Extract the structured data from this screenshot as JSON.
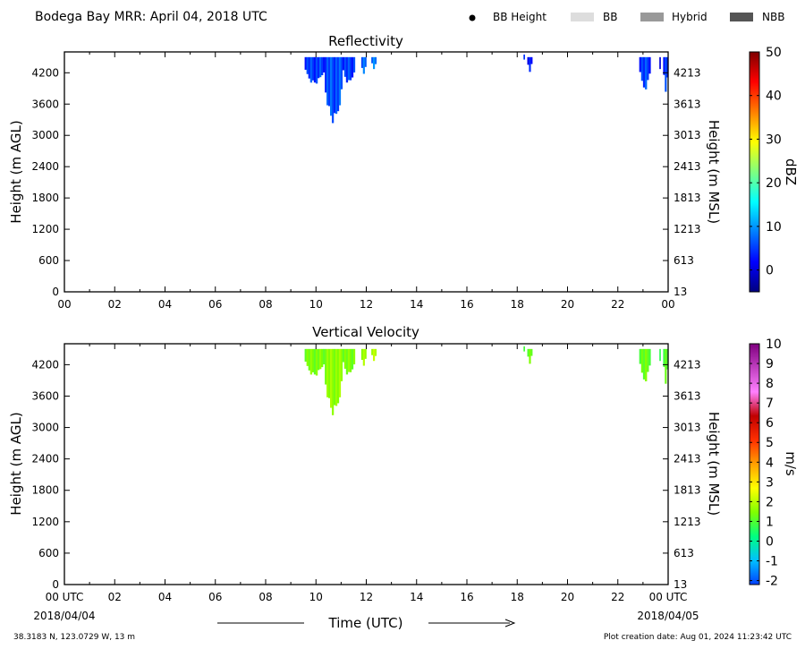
{
  "header": {
    "title": "Bodega Bay MRR:  April 04, 2018 UTC",
    "legend": [
      {
        "label": "BB Height",
        "swatch": "dot",
        "color": "#000000"
      },
      {
        "label": "BB",
        "swatch": "box",
        "color": "#dddddd"
      },
      {
        "label": "Hybrid",
        "swatch": "box",
        "color": "#999999"
      },
      {
        "label": "NBB",
        "swatch": "box",
        "color": "#555555"
      }
    ]
  },
  "footer": {
    "location": "38.3183 N, 123.0729 W, 13 m",
    "creation": "Plot creation date: Aug 01, 2024 11:23:42 UTC",
    "time_label": "Time (UTC)"
  },
  "chart_data": [
    {
      "type": "heatmap",
      "title": "Reflectivity",
      "ylabel": "Height (m AGL)",
      "ylabel_right": "Height (m MSL)",
      "xlim": [
        0,
        24
      ],
      "ylim": [
        0,
        4600
      ],
      "x_ticks": [
        "00",
        "02",
        "04",
        "06",
        "08",
        "10",
        "12",
        "14",
        "16",
        "18",
        "20",
        "22",
        "00"
      ],
      "y_ticks": [
        0,
        600,
        1200,
        1800,
        2400,
        3000,
        3600,
        4200
      ],
      "y_ticks_right": [
        "13",
        "613",
        "1213",
        "1813",
        "2413",
        "3013",
        "3613",
        "4213"
      ],
      "colorbar": {
        "label": "dBZ",
        "min": -5,
        "max": 50,
        "ticks": [
          "0",
          "10",
          "20",
          "30",
          "40",
          "50"
        ],
        "tick_values": [
          0,
          10,
          20,
          30,
          40,
          50
        ],
        "stops": [
          "#00007f",
          "#0000ff",
          "#007fff",
          "#00ffff",
          "#7fff7f",
          "#ffff00",
          "#ff7f00",
          "#ff0000",
          "#7f0000"
        ]
      },
      "echo_columns": [
        {
          "start_hour": 9.55,
          "end_hour": 10.35,
          "top_m": 4500,
          "bottom_m": 3950,
          "value": 5
        },
        {
          "start_hour": 10.35,
          "end_hour": 11.05,
          "top_m": 4500,
          "bottom_m": 3150,
          "value": 6
        },
        {
          "start_hour": 11.05,
          "end_hour": 11.55,
          "top_m": 4500,
          "bottom_m": 3950,
          "value": 5
        },
        {
          "start_hour": 11.8,
          "end_hour": 12.0,
          "top_m": 4500,
          "bottom_m": 4100,
          "value": 8
        },
        {
          "start_hour": 12.2,
          "end_hour": 12.4,
          "top_m": 4500,
          "bottom_m": 4250,
          "value": 9
        },
        {
          "start_hour": 18.25,
          "end_hour": 18.3,
          "top_m": 4550,
          "bottom_m": 4450,
          "value": 7
        },
        {
          "start_hour": 18.4,
          "end_hour": 18.6,
          "top_m": 4500,
          "bottom_m": 4200,
          "value": 3
        },
        {
          "start_hour": 22.85,
          "end_hour": 23.3,
          "top_m": 4500,
          "bottom_m": 3850,
          "value": 5
        },
        {
          "start_hour": 23.65,
          "end_hour": 23.7,
          "top_m": 4500,
          "bottom_m": 4250,
          "value": 2
        },
        {
          "start_hour": 23.8,
          "end_hour": 24.0,
          "top_m": 4500,
          "bottom_m": 3750,
          "value": 5
        }
      ]
    },
    {
      "type": "heatmap",
      "title": "Vertical Velocity",
      "ylabel": "Height (m AGL)",
      "ylabel_right": "Height (m MSL)",
      "xlim": [
        0,
        24
      ],
      "ylim": [
        0,
        4600
      ],
      "x_ticks": [
        "00 UTC",
        "02",
        "04",
        "06",
        "08",
        "10",
        "12",
        "14",
        "16",
        "18",
        "20",
        "22",
        "00 UTC"
      ],
      "x_date_start": "2018/04/04",
      "x_date_end": "2018/04/05",
      "y_ticks": [
        0,
        600,
        1200,
        1800,
        2400,
        3000,
        3600,
        4200
      ],
      "y_ticks_right": [
        "13",
        "613",
        "1213",
        "1813",
        "2413",
        "3013",
        "3613",
        "4213"
      ],
      "colorbar": {
        "label": "m/s",
        "min": -2.2,
        "max": 10,
        "ticks": [
          "-2",
          "-1",
          "0",
          "1",
          "2",
          "3",
          "4",
          "5",
          "6",
          "7",
          "8",
          "9",
          "10"
        ],
        "tick_values": [
          -2,
          -1,
          0,
          1,
          2,
          3,
          4,
          5,
          6,
          7,
          8,
          9,
          10
        ],
        "stops": [
          "#0040ff",
          "#00c0ff",
          "#00ff80",
          "#80ff00",
          "#ffff00",
          "#ffa000",
          "#ff3000",
          "#c00000",
          "#ff80ff",
          "#c040c0",
          "#800080"
        ]
      },
      "echo_columns": [
        {
          "start_hour": 9.55,
          "end_hour": 10.35,
          "top_m": 4500,
          "bottom_m": 3950,
          "value": 1.4
        },
        {
          "start_hour": 10.35,
          "end_hour": 11.05,
          "top_m": 4500,
          "bottom_m": 3150,
          "value": 1.6
        },
        {
          "start_hour": 11.05,
          "end_hour": 11.55,
          "top_m": 4500,
          "bottom_m": 3950,
          "value": 1.4
        },
        {
          "start_hour": 11.8,
          "end_hour": 12.0,
          "top_m": 4500,
          "bottom_m": 4100,
          "value": 1.8
        },
        {
          "start_hour": 12.2,
          "end_hour": 12.4,
          "top_m": 4500,
          "bottom_m": 4250,
          "value": 2.0
        },
        {
          "start_hour": 18.25,
          "end_hour": 18.3,
          "top_m": 4550,
          "bottom_m": 4450,
          "value": 1.2
        },
        {
          "start_hour": 18.4,
          "end_hour": 18.6,
          "top_m": 4500,
          "bottom_m": 4200,
          "value": 1.3
        },
        {
          "start_hour": 22.85,
          "end_hour": 23.3,
          "top_m": 4500,
          "bottom_m": 3850,
          "value": 1.2
        },
        {
          "start_hour": 23.65,
          "end_hour": 23.7,
          "top_m": 4500,
          "bottom_m": 4250,
          "value": 1.0
        },
        {
          "start_hour": 23.8,
          "end_hour": 24.0,
          "top_m": 4500,
          "bottom_m": 3750,
          "value": 1.1
        }
      ]
    }
  ]
}
